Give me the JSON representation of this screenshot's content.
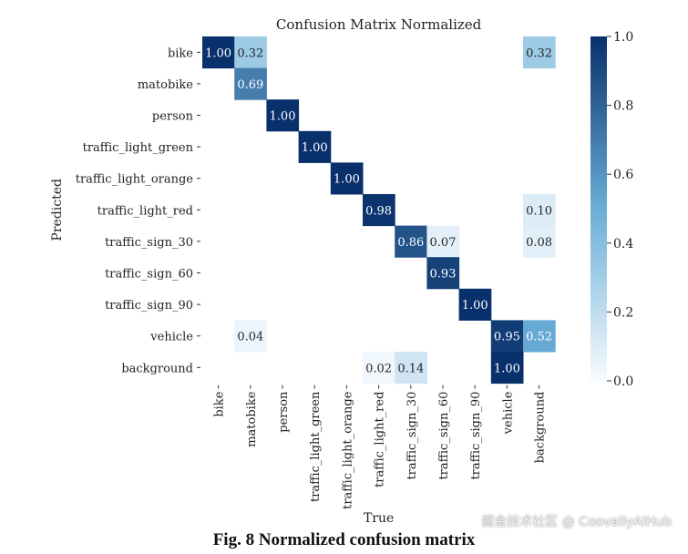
{
  "chart_data": {
    "type": "heatmap",
    "title": "Confusion Matrix Normalized",
    "xlabel": "True",
    "ylabel": "Predicted",
    "x_categories": [
      "bike",
      "matobike",
      "person",
      "traffic_light_green",
      "traffic_light_orange",
      "traffic_light_red",
      "traffic_sign_30",
      "traffic_sign_60",
      "traffic_sign_90",
      "vehicle",
      "background"
    ],
    "y_categories": [
      "bike",
      "matobike",
      "person",
      "traffic_light_green",
      "traffic_light_orange",
      "traffic_light_red",
      "traffic_sign_30",
      "traffic_sign_60",
      "traffic_sign_90",
      "vehicle",
      "background"
    ],
    "values": [
      [
        1.0,
        0.32,
        null,
        null,
        null,
        null,
        null,
        null,
        null,
        null,
        0.32
      ],
      [
        null,
        0.69,
        null,
        null,
        null,
        null,
        null,
        null,
        null,
        null,
        null
      ],
      [
        null,
        null,
        1.0,
        null,
        null,
        null,
        null,
        null,
        null,
        null,
        null
      ],
      [
        null,
        null,
        null,
        1.0,
        null,
        null,
        null,
        null,
        null,
        null,
        null
      ],
      [
        null,
        null,
        null,
        null,
        1.0,
        null,
        null,
        null,
        null,
        null,
        null
      ],
      [
        null,
        null,
        null,
        null,
        null,
        0.98,
        null,
        null,
        null,
        null,
        0.1
      ],
      [
        null,
        null,
        null,
        null,
        null,
        null,
        0.86,
        0.07,
        null,
        null,
        0.08
      ],
      [
        null,
        null,
        null,
        null,
        null,
        null,
        null,
        0.93,
        null,
        null,
        null
      ],
      [
        null,
        null,
        null,
        null,
        null,
        null,
        null,
        null,
        1.0,
        null,
        null
      ],
      [
        null,
        0.04,
        null,
        null,
        null,
        null,
        null,
        null,
        null,
        0.95,
        0.52
      ],
      [
        null,
        null,
        null,
        null,
        null,
        0.02,
        0.14,
        null,
        null,
        1.0,
        null
      ]
    ],
    "colorbar": {
      "range": [
        0.0,
        1.0
      ],
      "ticks": [
        "0.0",
        "0.2",
        "0.4",
        "0.6",
        "0.8",
        "1.0"
      ]
    },
    "colormap": {
      "low": "#f7fbff",
      "mid": "#6aaed6",
      "high": "#08306b"
    }
  },
  "caption": "Fig. 8 Normalized confusion matrix",
  "watermark": "掘金技术社区 @ CoovallyAIHub"
}
